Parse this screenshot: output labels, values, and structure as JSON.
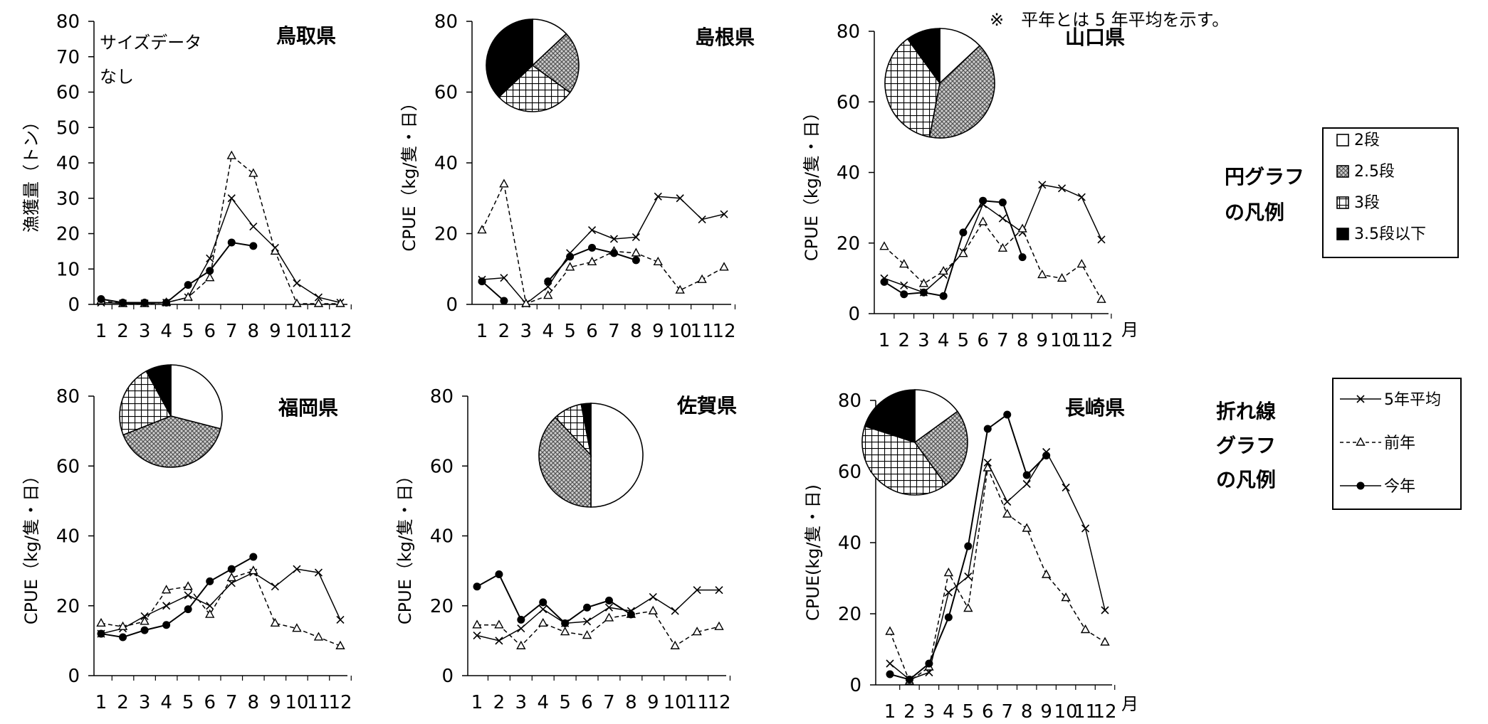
{
  "note": "※　平年とは 5 年平均を示す。",
  "month_unit": "月",
  "pie_legend": {
    "title_line1": "円グラフ",
    "title_line2": "の凡例",
    "items": [
      {
        "label": "2段",
        "pattern": "white"
      },
      {
        "label": "2.5段",
        "pattern": "dense"
      },
      {
        "label": "3段",
        "pattern": "grid"
      },
      {
        "label": "3.5段以下",
        "pattern": "black"
      }
    ]
  },
  "line_legend": {
    "title_line1": "折れ線",
    "title_line2": "グラフ",
    "title_line3": "の凡例",
    "items": [
      {
        "label": "5年平均",
        "marker": "x",
        "dash": false
      },
      {
        "label": "前年",
        "marker": "triangle",
        "dash": true
      },
      {
        "label": "今年",
        "marker": "dot",
        "dash": false
      }
    ]
  },
  "chart_data": [
    {
      "type": "line",
      "title": "鳥取県",
      "ylabel": "漁獲量（トン）",
      "ylim": [
        0,
        80
      ],
      "yticks": [
        0,
        10,
        20,
        30,
        40,
        50,
        60,
        70,
        80
      ],
      "x": [
        1,
        2,
        3,
        4,
        5,
        6,
        7,
        8,
        9,
        10,
        11,
        12
      ],
      "annotation_line1": "サイズデータ",
      "annotation_line2": "なし",
      "series": [
        {
          "name": "5年平均",
          "values": [
            0.5,
            0.3,
            0.3,
            0.5,
            2,
            13,
            30,
            22,
            16,
            6,
            2,
            0.5
          ]
        },
        {
          "name": "前年",
          "values": [
            1,
            0.2,
            0.2,
            0.5,
            2,
            7.5,
            42,
            37,
            15,
            0.2,
            0.2,
            0.2
          ]
        },
        {
          "name": "今年",
          "values": [
            1.5,
            0.5,
            0.5,
            0.5,
            5.5,
            9.5,
            17.5,
            16.5,
            null,
            null,
            null,
            null
          ]
        }
      ],
      "pie": null
    },
    {
      "type": "line",
      "title": "島根県",
      "ylabel": "CPUE（kg/隻・日）",
      "ylim": [
        0,
        80
      ],
      "yticks": [
        0,
        20,
        40,
        60,
        80
      ],
      "x": [
        1,
        2,
        3,
        4,
        5,
        6,
        7,
        8,
        9,
        10,
        11,
        12
      ],
      "series": [
        {
          "name": "5年平均",
          "values": [
            7,
            7.5,
            0.2,
            5,
            14.5,
            21,
            18.5,
            19,
            30.5,
            30,
            24,
            25.5
          ]
        },
        {
          "name": "前年",
          "values": [
            21,
            34,
            0.2,
            2.5,
            10.5,
            12,
            15,
            14.5,
            12,
            4,
            7,
            10.5
          ]
        },
        {
          "name": "今年",
          "values": [
            6.5,
            1,
            null,
            6.5,
            13.5,
            16,
            14.5,
            12.5,
            null,
            null,
            null,
            null
          ]
        }
      ],
      "pie": [
        {
          "label": "2段",
          "value": 13
        },
        {
          "label": "2.5段",
          "value": 22
        },
        {
          "label": "3段",
          "value": 28
        },
        {
          "label": "3.5段以下",
          "value": 37
        }
      ]
    },
    {
      "type": "line",
      "title": "山口県",
      "ylabel": "CPUE（kg/隻・日）",
      "ylim": [
        0,
        80
      ],
      "yticks": [
        0,
        20,
        40,
        60,
        80
      ],
      "x": [
        1,
        2,
        3,
        4,
        5,
        6,
        7,
        8,
        9,
        10,
        11,
        12
      ],
      "series": [
        {
          "name": "5年平均",
          "values": [
            10,
            8,
            6,
            11,
            17.5,
            31,
            27,
            23,
            36.5,
            35.5,
            33,
            21
          ]
        },
        {
          "name": "前年",
          "values": [
            19,
            14,
            8.5,
            12,
            17,
            26,
            18.5,
            24,
            11,
            10,
            14,
            4
          ]
        },
        {
          "name": "今年",
          "values": [
            9,
            5.5,
            6,
            5,
            23,
            32,
            31.5,
            16,
            null,
            null,
            null,
            null
          ]
        }
      ],
      "pie": [
        {
          "label": "2段",
          "value": 13
        },
        {
          "label": "2.5段",
          "value": 40
        },
        {
          "label": "3段",
          "value": 37
        },
        {
          "label": "3.5段以下",
          "value": 10
        }
      ]
    },
    {
      "type": "line",
      "title": "福岡県",
      "ylabel": "CPUE（kg/隻・日）",
      "ylim": [
        0,
        80
      ],
      "yticks": [
        0,
        20,
        40,
        60,
        80
      ],
      "x": [
        1,
        2,
        3,
        4,
        5,
        6,
        7,
        8,
        9,
        10,
        11,
        12
      ],
      "series": [
        {
          "name": "5年平均",
          "values": [
            12,
            13.5,
            17,
            20,
            23,
            20,
            26.5,
            29.5,
            25.5,
            30.5,
            29.5,
            16
          ]
        },
        {
          "name": "前年",
          "values": [
            15,
            14,
            15.5,
            24.5,
            25.5,
            17.5,
            28,
            30,
            15,
            13.5,
            11,
            8.5
          ]
        },
        {
          "name": "今年",
          "values": [
            12,
            11,
            13,
            14.5,
            19,
            27,
            30.5,
            34,
            null,
            null,
            null,
            null
          ]
        }
      ],
      "pie": [
        {
          "label": "2段",
          "value": 29
        },
        {
          "label": "2.5段",
          "value": 40
        },
        {
          "label": "3段",
          "value": 23
        },
        {
          "label": "3.5段以下",
          "value": 8
        }
      ]
    },
    {
      "type": "line",
      "title": "佐賀県",
      "ylabel": "CPUE（kg/隻・日）",
      "ylim": [
        0,
        80
      ],
      "yticks": [
        0,
        20,
        40,
        60,
        80
      ],
      "x": [
        1,
        2,
        3,
        4,
        5,
        6,
        7,
        8,
        9,
        10,
        11,
        12
      ],
      "series": [
        {
          "name": "5年平均",
          "values": [
            11.5,
            10,
            13.5,
            19,
            15,
            15.5,
            19.5,
            18.5,
            22.5,
            18.5,
            24.5,
            24.5
          ]
        },
        {
          "name": "前年",
          "values": [
            14.5,
            14.5,
            8.5,
            15,
            12.5,
            11.5,
            16.5,
            17.5,
            18.5,
            8.5,
            12.5,
            14
          ]
        },
        {
          "name": "今年",
          "values": [
            25.5,
            29,
            16,
            21,
            15,
            19.5,
            21.5,
            17.5,
            null,
            null,
            null,
            null
          ]
        }
      ],
      "pie": [
        {
          "label": "2段",
          "value": 50
        },
        {
          "label": "2.5段",
          "value": 38
        },
        {
          "label": "3段",
          "value": 9
        },
        {
          "label": "3.5段以下",
          "value": 3
        }
      ]
    },
    {
      "type": "line",
      "title": "長崎県",
      "ylabel": "CPUE(kg/隻・日)",
      "ylim": [
        0,
        80
      ],
      "yticks": [
        0,
        20,
        40,
        60,
        80
      ],
      "x": [
        1,
        2,
        3,
        4,
        5,
        6,
        7,
        8,
        9,
        10,
        11,
        12
      ],
      "series": [
        {
          "name": "5年平均",
          "values": [
            6,
            1.5,
            3.5,
            26,
            30.5,
            62.5,
            51.5,
            56.5,
            65.5,
            55.5,
            44,
            21
          ]
        },
        {
          "name": "前年",
          "values": [
            15,
            1,
            5,
            31.5,
            21.5,
            61,
            48,
            44,
            31,
            24.5,
            15.5,
            12
          ]
        },
        {
          "name": "今年",
          "values": [
            3,
            1.5,
            6,
            19,
            39,
            72,
            76,
            59,
            64.5,
            null,
            null,
            null
          ]
        }
      ],
      "pie": [
        {
          "label": "2段",
          "value": 15
        },
        {
          "label": "2.5段",
          "value": 25
        },
        {
          "label": "3段",
          "value": 40
        },
        {
          "label": "3.5段以下",
          "value": 20
        }
      ]
    }
  ]
}
